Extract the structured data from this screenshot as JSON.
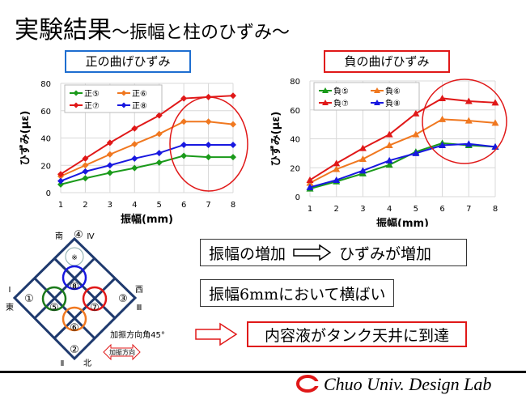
{
  "title": {
    "main": "実験結果",
    "sub": "～振幅と柱のひずみ～"
  },
  "labels": {
    "positive": "正の曲げひずみ",
    "negative": "負の曲げひずみ"
  },
  "chart_data": [
    {
      "type": "line",
      "marker": "diamond",
      "xlabel": "振幅(mm)",
      "ylabel": "ひずみ(με)",
      "x": [
        1,
        2,
        3,
        4,
        5,
        6,
        7,
        8
      ],
      "ylim": [
        0,
        80
      ],
      "yticks": [
        0,
        20,
        40,
        60,
        80
      ],
      "grid": true,
      "legend": "top-left",
      "highlight": "red ellipse around x=6–8",
      "series": [
        {
          "name": "正⑤",
          "color": "#1a9a1a",
          "values": [
            6,
            10.5,
            14.5,
            18,
            22,
            27,
            26,
            26
          ]
        },
        {
          "name": "正⑥",
          "color": "#f07820",
          "values": [
            12,
            20,
            28,
            35.5,
            43,
            52,
            52,
            50
          ]
        },
        {
          "name": "正⑦",
          "color": "#e01818",
          "values": [
            13.5,
            25,
            36.5,
            47,
            56.5,
            69,
            70,
            71
          ]
        },
        {
          "name": "正⑧",
          "color": "#1818e0",
          "values": [
            8.5,
            15.5,
            20,
            25,
            29,
            35,
            35,
            35
          ]
        }
      ]
    },
    {
      "type": "line",
      "marker": "triangle",
      "xlabel": "振幅(mm)",
      "ylabel": "ひずみ(με)",
      "x": [
        1,
        2,
        3,
        4,
        5,
        6,
        7,
        8
      ],
      "ylim": [
        0,
        80
      ],
      "yticks": [
        0,
        20,
        40,
        60,
        80
      ],
      "grid": true,
      "legend": "top-left",
      "highlight": "red ellipse around x=6–8",
      "series": [
        {
          "name": "負⑤",
          "color": "#1a9a1a",
          "values": [
            5.5,
            10.5,
            16,
            22,
            31,
            37,
            35.5,
            34.5
          ]
        },
        {
          "name": "負⑥",
          "color": "#f07820",
          "values": [
            9.5,
            19,
            26,
            35.5,
            43,
            53.5,
            52.5,
            51
          ]
        },
        {
          "name": "負⑦",
          "color": "#e01818",
          "values": [
            11.5,
            23,
            33.5,
            43,
            57.5,
            68,
            66,
            65
          ]
        },
        {
          "name": "負⑧",
          "color": "#1818e0",
          "values": [
            6.5,
            11.5,
            18,
            25,
            30,
            35.5,
            36.5,
            34.5
          ]
        }
      ]
    }
  ],
  "diagram": {
    "south": "南",
    "north": "北",
    "east": "東",
    "west": "西",
    "n1": "①",
    "n2": "②",
    "n3": "③",
    "n4": "④",
    "n5": "⑤",
    "n6": "⑥",
    "n7": "⑦",
    "n8": "⑧",
    "r1": "Ⅰ",
    "r2": "Ⅱ",
    "r3": "Ⅲ",
    "r4": "Ⅳ",
    "mark": "※",
    "angle": "加振方向角45°",
    "direction": "加振方向"
  },
  "conclusions": {
    "c1_left": "振幅の増加",
    "c1_right": "ひずみが増加",
    "c2": "振幅6mmにおいて横ばい",
    "c3": "内容液がタンク天井に到達"
  },
  "footer": {
    "lab": "Chuo Univ. Design Lab"
  }
}
